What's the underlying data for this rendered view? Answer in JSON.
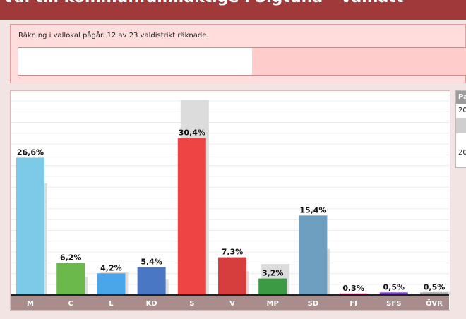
{
  "page": {
    "title": "Val till kommunfullmäktige i Sigtuna - Valnatt"
  },
  "status": {
    "message": "Räkning i vallokal pågår. 12 av 23 valdistrikt räknade.",
    "districts_counted": 12,
    "districts_total": 23
  },
  "side_panel": {
    "header": "Pa",
    "rows": [
      "20",
      "20"
    ]
  },
  "colors": {
    "M": "#7ccae8",
    "C": "#6ab94a",
    "L": "#4aa6e8",
    "KD": "#4a77c4",
    "S": "#ef4444",
    "V": "#d63d3d",
    "MP": "#3c9a44",
    "SD": "#6f9fc0",
    "FI": "#c0407a",
    "SFS": "#7a3fc8",
    "ÖVR": "#aaaaaa",
    "previous": "#dcdcdc",
    "axis": "#a98d8d"
  },
  "chart_data": {
    "type": "bar",
    "categories": [
      "M",
      "C",
      "L",
      "KD",
      "S",
      "V",
      "MP",
      "SD",
      "FI",
      "SFS",
      "ÖVR"
    ],
    "series": [
      {
        "name": "",
        "values": [
          26.6,
          6.2,
          4.2,
          5.4,
          30.4,
          7.3,
          3.2,
          15.4,
          0.3,
          0.5,
          0.5
        ],
        "labels": [
          "26,6%",
          "6,2%",
          "4,2%",
          "5,4%",
          "30,4%",
          "7,3%",
          "3,2%",
          "15,4%",
          "0,3%",
          "0,5%",
          "0,5%"
        ]
      },
      {
        "name": "",
        "values": [
          21.6,
          3.6,
          4.4,
          3.0,
          37.8,
          4.6,
          6.0,
          8.9,
          0.3,
          0.2,
          0.6
        ]
      }
    ],
    "ylim": [
      0,
      38
    ],
    "grid": true
  }
}
